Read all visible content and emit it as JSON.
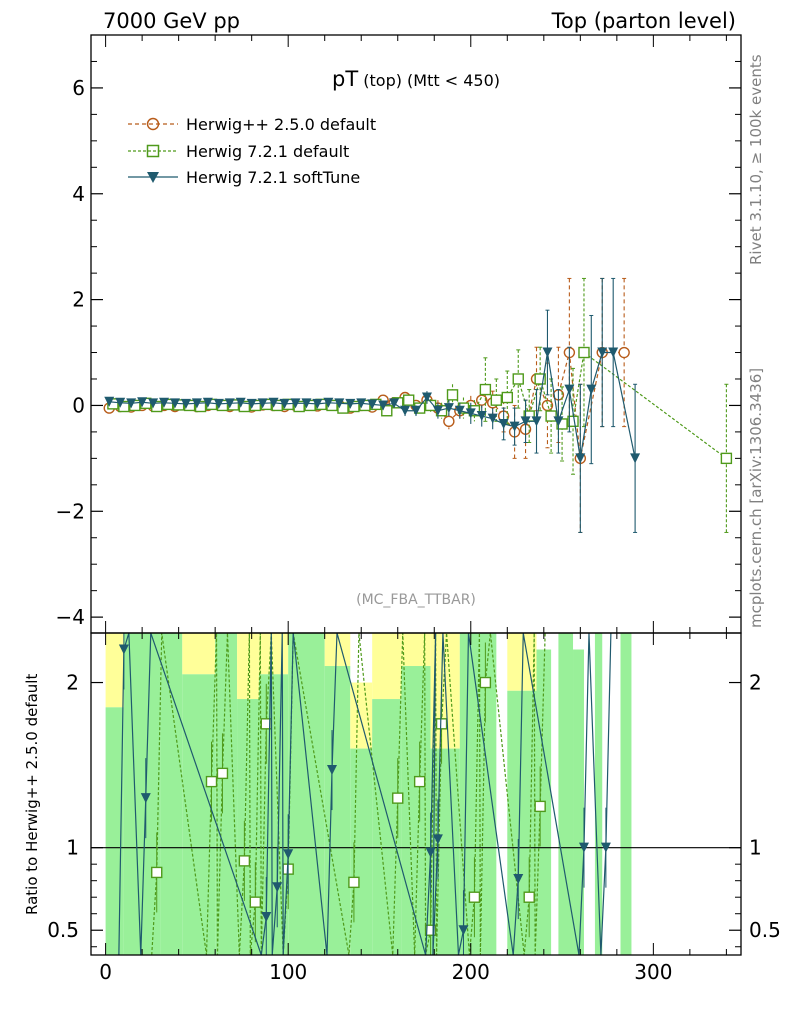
{
  "header": {
    "left": "7000 GeV pp",
    "right": "Top (parton level)"
  },
  "side_text": {
    "top": "Rivet 3.1.10, ≥ 100k events",
    "bottom": "mcplots.cern.ch [arXiv:1306.3436]"
  },
  "plot": {
    "title_main": "pT",
    "title_sub": " (top) (Mtt < 450)",
    "watermark": "(MC_FBA_TTBAR)",
    "ratio_ylabel": "Ratio to Herwig++ 2.5.0 default"
  },
  "colors": {
    "herwigpp": "#b85c1a",
    "herwig721": "#4f9a1b",
    "softtune": "#1f5a6e",
    "band_green": "#99f099",
    "band_yellow": "#ffff99"
  },
  "chart_data": {
    "type": "line",
    "xlim": [
      -8,
      348
    ],
    "main": {
      "ylim": [
        -4.3,
        7.0
      ],
      "yticks": [
        -4,
        -2,
        0,
        2,
        4,
        6
      ],
      "ytick_labels": [
        "−4",
        "−2",
        "0",
        "2",
        "4",
        "6"
      ]
    },
    "ratio": {
      "ylim": [
        0.35,
        2.3
      ],
      "yticks": [
        0.5,
        1,
        2
      ],
      "ytick_labels": [
        "0.5",
        "1",
        "2"
      ],
      "ref_line": 1
    },
    "xticks": [
      0,
      100,
      200,
      300
    ],
    "xtick_labels": [
      "0",
      "100",
      "200",
      "300"
    ],
    "series": [
      {
        "name": "Herwig++ 2.5.0 default",
        "marker": "circle",
        "x": [
          2,
          8,
          14,
          20,
          26,
          32,
          38,
          44,
          50,
          56,
          62,
          68,
          74,
          80,
          86,
          92,
          98,
          104,
          110,
          116,
          122,
          128,
          134,
          140,
          146,
          152,
          158,
          164,
          170,
          176,
          182,
          188,
          194,
          200,
          206,
          212,
          218,
          224,
          230,
          236,
          242,
          248,
          254,
          260,
          272,
          284
        ],
        "y": [
          -0.05,
          -0.02,
          -0.03,
          0.0,
          -0.01,
          0.0,
          -0.02,
          0.01,
          -0.02,
          0.0,
          0.01,
          -0.02,
          0.0,
          -0.03,
          0.01,
          0.0,
          -0.02,
          0.0,
          0.01,
          -0.01,
          0.03,
          0.0,
          -0.05,
          0.0,
          -0.03,
          0.1,
          0.05,
          0.15,
          0.0,
          0.1,
          -0.05,
          -0.3,
          -0.1,
          0.0,
          0.1,
          0.05,
          -0.2,
          -0.5,
          -0.45,
          0.5,
          0.0,
          0.2,
          1.0,
          -1.0,
          1.0,
          1.0
        ],
        "err": [
          0.05,
          0.05,
          0.05,
          0.05,
          0.05,
          0.05,
          0.05,
          0.05,
          0.05,
          0.05,
          0.05,
          0.05,
          0.05,
          0.05,
          0.05,
          0.05,
          0.05,
          0.05,
          0.05,
          0.05,
          0.05,
          0.06,
          0.06,
          0.06,
          0.07,
          0.08,
          0.08,
          0.1,
          0.1,
          0.12,
          0.15,
          0.15,
          0.15,
          0.18,
          0.2,
          0.22,
          0.3,
          0.5,
          0.55,
          0.6,
          0.8,
          0.9,
          1.4,
          1.4,
          1.4,
          1.4
        ]
      },
      {
        "name": "Herwig 7.2.1 default",
        "marker": "square",
        "x": [
          4,
          10,
          16,
          22,
          28,
          34,
          40,
          46,
          52,
          58,
          64,
          70,
          76,
          82,
          88,
          94,
          100,
          106,
          112,
          118,
          124,
          130,
          136,
          142,
          148,
          154,
          160,
          166,
          172,
          178,
          184,
          190,
          196,
          202,
          208,
          214,
          220,
          226,
          232,
          238,
          244,
          250,
          256,
          262,
          340
        ],
        "y": [
          0.03,
          -0.02,
          0.0,
          0.04,
          -0.02,
          0.02,
          0.01,
          0.0,
          -0.02,
          0.02,
          0.0,
          0.01,
          -0.02,
          0.0,
          0.02,
          0.0,
          0.02,
          -0.02,
          0.0,
          0.02,
          0.0,
          -0.05,
          -0.02,
          0.0,
          0.02,
          -0.1,
          0.05,
          0.1,
          -0.05,
          0.0,
          -0.1,
          0.2,
          -0.05,
          -0.1,
          0.3,
          0.1,
          0.15,
          0.5,
          -0.2,
          0.5,
          -0.2,
          -0.35,
          -0.3,
          1.0,
          -1.0
        ],
        "err": [
          0.05,
          0.05,
          0.05,
          0.05,
          0.05,
          0.05,
          0.05,
          0.05,
          0.05,
          0.05,
          0.05,
          0.05,
          0.05,
          0.05,
          0.05,
          0.05,
          0.05,
          0.05,
          0.05,
          0.05,
          0.05,
          0.06,
          0.06,
          0.06,
          0.07,
          0.08,
          0.08,
          0.1,
          0.1,
          0.12,
          0.15,
          0.2,
          0.2,
          0.2,
          0.6,
          0.4,
          0.5,
          0.55,
          0.5,
          0.6,
          0.7,
          0.7,
          1.0,
          1.4,
          1.4
        ]
      },
      {
        "name": "Herwig 7.2.1 softTune",
        "marker": "triangle-down",
        "x": [
          2,
          8,
          14,
          20,
          26,
          32,
          38,
          44,
          50,
          56,
          62,
          68,
          74,
          80,
          86,
          92,
          98,
          104,
          110,
          116,
          122,
          128,
          134,
          140,
          146,
          152,
          158,
          164,
          170,
          176,
          182,
          188,
          194,
          200,
          206,
          212,
          218,
          224,
          230,
          236,
          242,
          248,
          254,
          260,
          266,
          272,
          278,
          290
        ],
        "y": [
          0.07,
          0.05,
          0.04,
          0.06,
          0.04,
          0.05,
          0.04,
          0.03,
          0.04,
          0.05,
          0.03,
          0.04,
          0.05,
          0.03,
          0.04,
          0.05,
          0.03,
          0.04,
          0.04,
          0.03,
          0.05,
          0.04,
          0.03,
          0.04,
          0.02,
          0.0,
          0.04,
          -0.1,
          -0.1,
          0.15,
          -0.1,
          -0.05,
          -0.1,
          -0.15,
          -0.2,
          -0.25,
          -0.35,
          -0.4,
          -0.3,
          -0.3,
          1.0,
          -0.3,
          0.3,
          -1.0,
          0.3,
          1.0,
          1.0,
          -1.0
        ],
        "err": [
          0.05,
          0.05,
          0.05,
          0.05,
          0.05,
          0.05,
          0.05,
          0.05,
          0.05,
          0.05,
          0.05,
          0.05,
          0.05,
          0.05,
          0.05,
          0.05,
          0.05,
          0.05,
          0.05,
          0.05,
          0.05,
          0.06,
          0.06,
          0.06,
          0.07,
          0.08,
          0.08,
          0.1,
          0.1,
          0.12,
          0.15,
          0.15,
          0.15,
          0.2,
          0.2,
          0.2,
          0.3,
          0.35,
          0.4,
          0.6,
          0.8,
          0.6,
          0.8,
          1.4,
          1.4,
          1.4,
          1.4,
          1.4
        ]
      }
    ],
    "ratio_series": [
      {
        "name": "Herwig 7.2.1 default",
        "x": [
          28,
          58,
          64,
          76,
          82,
          88,
          100,
          136,
          160,
          172,
          178,
          184,
          202,
          208,
          232,
          238
        ],
        "y": [
          0.85,
          1.4,
          1.45,
          0.92,
          0.67,
          1.75,
          0.87,
          0.79,
          1.3,
          1.4,
          0.5,
          1.75,
          0.7,
          2.0,
          0.7,
          1.25
        ]
      },
      {
        "name": "Herwig 7.2.1 softTune",
        "x": [
          10,
          22,
          88,
          94,
          100,
          124,
          178,
          182,
          196,
          226,
          262,
          274
        ],
        "y": [
          2.2,
          1.3,
          0.58,
          0.76,
          0.96,
          1.47,
          0.97,
          1.05,
          0.5,
          0.81,
          1.0,
          1.0
        ]
      }
    ],
    "bands": [
      {
        "x": [
          0,
          10
        ],
        "green": [
          0.35,
          1.85
        ],
        "yellow": [
          1.85,
          2.3
        ]
      },
      {
        "x": [
          10,
          30
        ],
        "green": [
          0.35,
          2.3
        ],
        "yellow": null
      },
      {
        "x": [
          30,
          42
        ],
        "green": [
          0.35,
          2.3
        ],
        "yellow": null
      },
      {
        "x": [
          42,
          60
        ],
        "green": [
          0.35,
          2.05
        ],
        "yellow": [
          2.05,
          2.3
        ]
      },
      {
        "x": [
          60,
          72
        ],
        "green": [
          0.35,
          2.3
        ],
        "yellow": null
      },
      {
        "x": [
          72,
          84
        ],
        "green": [
          0.35,
          1.9
        ],
        "yellow": [
          1.9,
          2.3
        ]
      },
      {
        "x": [
          84,
          100
        ],
        "green": [
          0.35,
          2.05
        ],
        "yellow": [
          2.05,
          2.3
        ]
      },
      {
        "x": [
          100,
          120
        ],
        "green": [
          0.35,
          2.3
        ],
        "yellow": null
      },
      {
        "x": [
          120,
          134
        ],
        "green": [
          0.35,
          2.1
        ],
        "yellow": [
          2.1,
          2.3
        ]
      },
      {
        "x": [
          134,
          146
        ],
        "green": [
          0.35,
          1.6
        ],
        "yellow": [
          1.6,
          2.0
        ]
      },
      {
        "x": [
          146,
          162
        ],
        "green": [
          0.35,
          1.9
        ],
        "yellow": [
          1.9,
          2.3
        ]
      },
      {
        "x": [
          162,
          178
        ],
        "green": [
          0.35,
          2.1
        ],
        "yellow": [
          2.1,
          2.3
        ]
      },
      {
        "x": [
          178,
          194
        ],
        "green": [
          0.35,
          1.6
        ],
        "yellow": [
          1.6,
          2.3
        ]
      },
      {
        "x": [
          194,
          214
        ],
        "green": [
          0.35,
          2.3
        ],
        "yellow": null
      },
      {
        "x": [
          220,
          236
        ],
        "green": [
          0.35,
          1.95
        ],
        "yellow": [
          1.95,
          2.3
        ]
      },
      {
        "x": [
          236,
          244
        ],
        "green": [
          0.35,
          2.2
        ],
        "yellow": null
      },
      {
        "x": [
          248,
          256
        ],
        "green": [
          0.35,
          2.3
        ],
        "yellow": null
      },
      {
        "x": [
          256,
          262
        ],
        "green": [
          0.35,
          2.2
        ],
        "yellow": null
      },
      {
        "x": [
          268,
          272
        ],
        "green": [
          0.35,
          2.3
        ],
        "yellow": null
      },
      {
        "x": [
          282,
          288
        ],
        "green": [
          0.35,
          2.3
        ],
        "yellow": null
      }
    ]
  }
}
